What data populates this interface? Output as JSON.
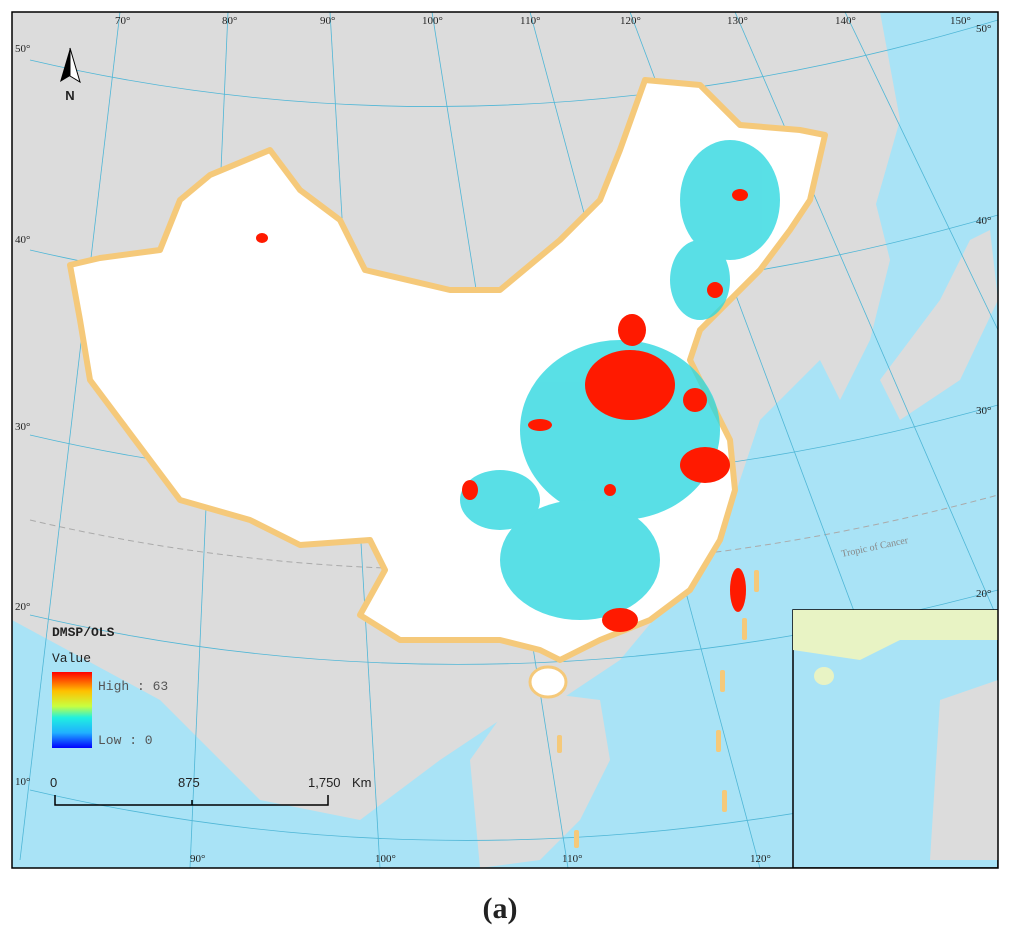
{
  "map": {
    "longitude_labels_top": [
      "70°",
      "80°",
      "90°",
      "100°",
      "110°",
      "120°",
      "130°",
      "140°",
      "150°"
    ],
    "latitude_labels_left": [
      "50°",
      "40°",
      "30°",
      "20°",
      "10°"
    ],
    "latitude_labels_right": [
      "50°",
      "40°",
      "30°",
      "20°"
    ],
    "longitude_labels_bottom": [
      "90°",
      "100°",
      "110°",
      "120°"
    ],
    "tropic_label": "Tropic of Cancer",
    "north_arrow": "N"
  },
  "legend": {
    "title": "DMSP/OLS",
    "subtitle": "Value",
    "high": "High : 63",
    "low": "Low : 0"
  },
  "scale_bar": {
    "labels": [
      "0",
      "875",
      "1,750"
    ],
    "unit": "Km"
  },
  "caption": "(a)"
}
